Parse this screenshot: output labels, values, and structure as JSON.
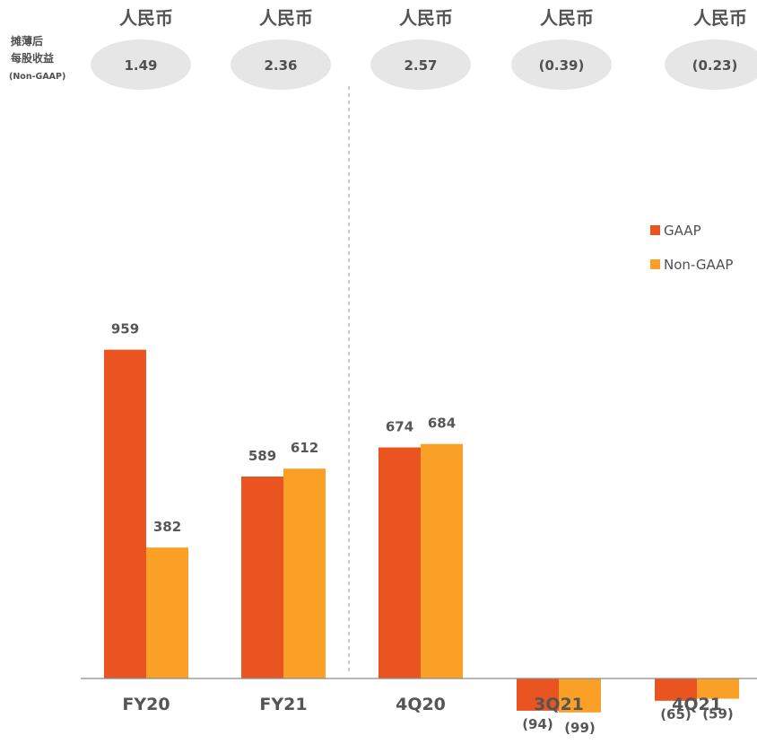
{
  "eps_row": {
    "label_lines": [
      "摊薄后",
      "每股收益",
      "(Non-GAAP)"
    ],
    "currency_labels": [
      "人民币",
      "人民币",
      "人民币",
      "人民币",
      "人民币"
    ],
    "values": [
      "1.49",
      "2.36",
      "2.57",
      "(0.39)",
      "(0.23)"
    ]
  },
  "chart_data": {
    "type": "bar",
    "categories": [
      "FY20",
      "FY21",
      "4Q20",
      "3Q21",
      "4Q21"
    ],
    "series": [
      {
        "name": "GAAP",
        "color": "#E95420",
        "values": [
          959,
          589,
          674,
          -94,
          -65
        ],
        "labels": [
          "959",
          "589",
          "674",
          "(94)",
          "(65)"
        ]
      },
      {
        "name": "Non-GAAP",
        "color": "#FBA026",
        "values": [
          382,
          612,
          684,
          -99,
          -59
        ],
        "labels": [
          "382",
          "612",
          "684",
          "(99)",
          "(59)"
        ]
      }
    ],
    "legend": [
      "GAAP",
      "Non-GAAP"
    ],
    "legend_position": "right",
    "grid": false,
    "ylim": [
      -110,
      1000
    ]
  }
}
